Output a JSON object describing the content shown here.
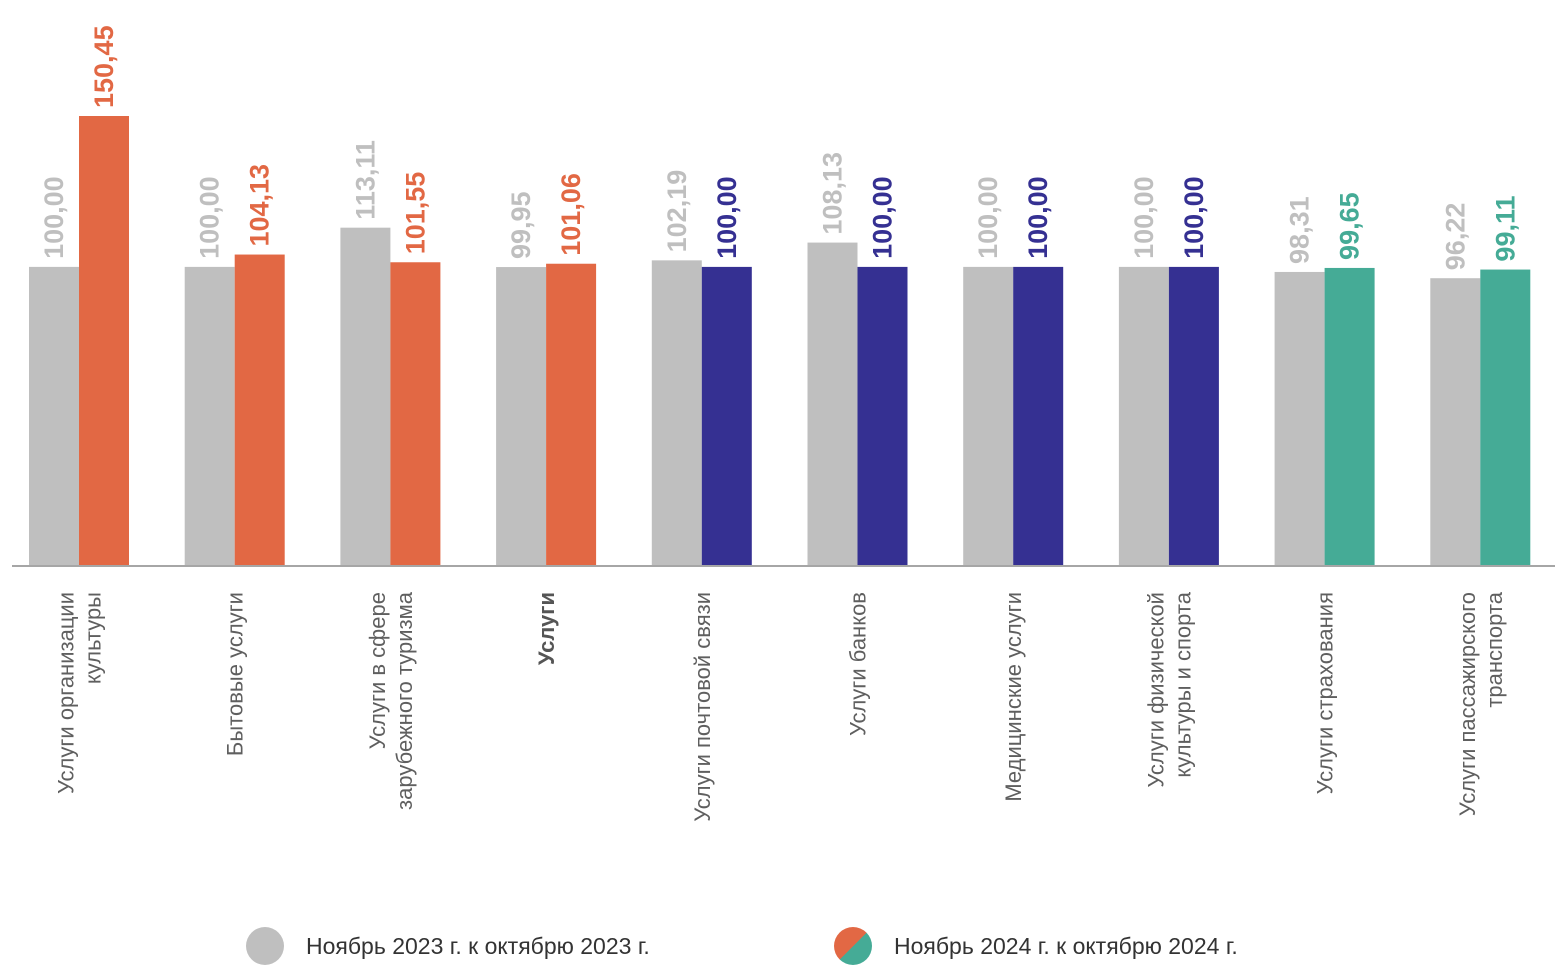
{
  "chart_data": {
    "type": "bar",
    "categories": [
      [
        "Услуги организации",
        "культуры"
      ],
      [
        "Бытовые услуги"
      ],
      [
        "Услуги в сфере",
        "зарубежного туризма"
      ],
      [
        "Услуги"
      ],
      [
        "Услуги  почтовой связи"
      ],
      [
        "Услуги  банков"
      ],
      [
        "Медицинские услуги"
      ],
      [
        "Услуги физической",
        "культуры и спорта"
      ],
      [
        "Услуги страхования"
      ],
      [
        "Услуги пассажирского",
        "транспорта"
      ]
    ],
    "highlight_category": 3,
    "series": [
      {
        "name": "Ноябрь 2023 г. к октябрю 2023 г.",
        "values": [
          100.0,
          100.0,
          113.11,
          99.95,
          102.19,
          108.13,
          100.0,
          100.0,
          98.31,
          96.22
        ],
        "labels": [
          "100,00",
          "100,00",
          "113,11",
          "99,95",
          "102,19",
          "108,13",
          "100,00",
          "100,00",
          "98,31",
          "96,22"
        ],
        "colors": [
          "#bfbfbf",
          "#bfbfbf",
          "#bfbfbf",
          "#bfbfbf",
          "#bfbfbf",
          "#bfbfbf",
          "#bfbfbf",
          "#bfbfbf",
          "#bfbfbf",
          "#bfbfbf"
        ]
      },
      {
        "name": "Ноябрь 2024 г. к октябрю  2024 г.",
        "values": [
          150.45,
          104.13,
          101.55,
          101.06,
          100.0,
          100.0,
          100.0,
          100.0,
          99.65,
          99.11
        ],
        "labels": [
          "150,45",
          "104,13",
          "101,55",
          "101,06",
          "100,00",
          "100,00",
          "100,00",
          "100,00",
          "99,65",
          "99,11"
        ],
        "colors": [
          "#e26844",
          "#e26844",
          "#e26844",
          "#e26844",
          "#353092",
          "#353092",
          "#353092",
          "#353092",
          "#45ab96",
          "#45ab96"
        ]
      }
    ],
    "ylim": [
      0,
      150.45
    ],
    "grid": false,
    "legend_position": "bottom",
    "legend_marker_colors": {
      "series_1": "#bfbfbf",
      "series_2": [
        "#e26844",
        "#45ab96"
      ]
    }
  }
}
